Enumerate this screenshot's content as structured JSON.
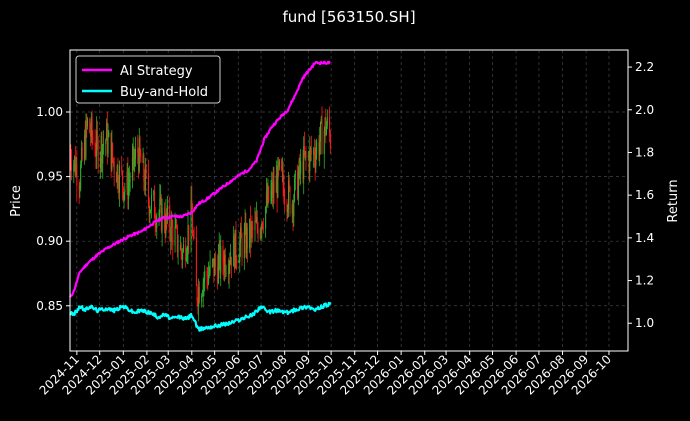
{
  "chart_data": {
    "type": "line",
    "title": "fund [563150.SH]",
    "ylabel_left": "Price",
    "ylabel_right": "Return",
    "ylim_left": [
      0.815,
      1.048
    ],
    "ylim_right": [
      0.87,
      2.28
    ],
    "x_range": [
      "2024-10-23",
      "2026-10-26"
    ],
    "grid": true,
    "legend_position": "upper-left",
    "colors": {
      "ai_strategy": "#ff00ff",
      "buy_and_hold": "#00ffff",
      "candle_up": "#2bb32b",
      "candle_down": "#ff1a1a",
      "grid": "#444444",
      "spine": "#ffffff"
    },
    "x_ticks": [
      "2024-11",
      "2024-12",
      "2025-01",
      "2025-02",
      "2025-03",
      "2025-04",
      "2025-05",
      "2025-06",
      "2025-07",
      "2025-08",
      "2025-09",
      "2025-10",
      "2025-11",
      "2025-12",
      "2026-01",
      "2026-02",
      "2026-03",
      "2026-04",
      "2026-05",
      "2026-06",
      "2026-07",
      "2026-08",
      "2026-09",
      "2026-10"
    ],
    "y_ticks_left": [
      "0.85",
      "0.90",
      "0.95",
      "1.00"
    ],
    "y_ticks_right": [
      "1.0",
      "1.2",
      "1.4",
      "1.6",
      "1.8",
      "2.0",
      "2.2"
    ],
    "series": [
      {
        "name": "AI Strategy",
        "axis": "right",
        "points": [
          [
            "2024-10-23",
            1.12
          ],
          [
            "2024-10-28",
            1.15
          ],
          [
            "2024-11-05",
            1.24
          ],
          [
            "2024-11-15",
            1.28
          ],
          [
            "2024-11-28",
            1.32
          ],
          [
            "2024-12-10",
            1.35
          ],
          [
            "2024-12-25",
            1.38
          ],
          [
            "2025-01-10",
            1.41
          ],
          [
            "2025-01-25",
            1.43
          ],
          [
            "2025-02-10",
            1.47
          ],
          [
            "2025-02-20",
            1.49
          ],
          [
            "2025-03-05",
            1.5
          ],
          [
            "2025-03-20",
            1.5
          ],
          [
            "2025-04-01",
            1.52
          ],
          [
            "2025-04-10",
            1.56
          ],
          [
            "2025-04-20",
            1.58
          ],
          [
            "2025-05-05",
            1.62
          ],
          [
            "2025-05-20",
            1.66
          ],
          [
            "2025-06-05",
            1.7
          ],
          [
            "2025-06-15",
            1.72
          ],
          [
            "2025-06-25",
            1.76
          ],
          [
            "2025-07-05",
            1.86
          ],
          [
            "2025-07-15",
            1.92
          ],
          [
            "2025-07-25",
            1.96
          ],
          [
            "2025-08-05",
            2.0
          ],
          [
            "2025-08-15",
            2.07
          ],
          [
            "2025-08-25",
            2.15
          ],
          [
            "2025-09-01",
            2.18
          ],
          [
            "2025-09-10",
            2.22
          ],
          [
            "2025-09-20",
            2.22
          ],
          [
            "2025-09-30",
            2.22
          ]
        ]
      },
      {
        "name": "Buy-and-Hold",
        "axis": "right",
        "points": [
          [
            "2024-10-23",
            1.05
          ],
          [
            "2024-10-28",
            1.04
          ],
          [
            "2024-11-05",
            1.08
          ],
          [
            "2024-11-12",
            1.06
          ],
          [
            "2024-11-18",
            1.08
          ],
          [
            "2024-11-28",
            1.06
          ],
          [
            "2024-12-10",
            1.07
          ],
          [
            "2024-12-20",
            1.06
          ],
          [
            "2025-01-01",
            1.08
          ],
          [
            "2025-01-15",
            1.05
          ],
          [
            "2025-01-25",
            1.06
          ],
          [
            "2025-02-05",
            1.05
          ],
          [
            "2025-02-15",
            1.03
          ],
          [
            "2025-02-25",
            1.04
          ],
          [
            "2025-03-05",
            1.02
          ],
          [
            "2025-03-15",
            1.03
          ],
          [
            "2025-03-25",
            1.02
          ],
          [
            "2025-04-01",
            1.04
          ],
          [
            "2025-04-06",
            1.0
          ],
          [
            "2025-04-09",
            0.97
          ],
          [
            "2025-04-20",
            0.98
          ],
          [
            "2025-05-05",
            0.99
          ],
          [
            "2025-05-20",
            1.0
          ],
          [
            "2025-06-05",
            1.02
          ],
          [
            "2025-06-20",
            1.04
          ],
          [
            "2025-07-01",
            1.08
          ],
          [
            "2025-07-10",
            1.05
          ],
          [
            "2025-07-20",
            1.06
          ],
          [
            "2025-08-05",
            1.05
          ],
          [
            "2025-08-20",
            1.07
          ],
          [
            "2025-09-01",
            1.08
          ],
          [
            "2025-09-10",
            1.06
          ],
          [
            "2025-09-20",
            1.08
          ],
          [
            "2025-09-30",
            1.09
          ]
        ]
      }
    ],
    "candlestick_trend": [
      [
        "2024-10-23",
        0.97
      ],
      [
        "2024-11-05",
        0.95
      ],
      [
        "2024-11-15",
        0.99
      ],
      [
        "2024-11-28",
        0.97
      ],
      [
        "2024-12-10",
        0.98
      ],
      [
        "2024-12-20",
        0.96
      ],
      [
        "2025-01-05",
        0.94
      ],
      [
        "2025-01-20",
        0.97
      ],
      [
        "2025-02-05",
        0.93
      ],
      [
        "2025-02-20",
        0.92
      ],
      [
        "2025-03-05",
        0.91
      ],
      [
        "2025-03-20",
        0.89
      ],
      [
        "2025-04-01",
        0.92
      ],
      [
        "2025-04-07",
        0.86
      ],
      [
        "2025-04-15",
        0.87
      ],
      [
        "2025-05-01",
        0.88
      ],
      [
        "2025-05-20",
        0.89
      ],
      [
        "2025-06-10",
        0.9
      ],
      [
        "2025-06-25",
        0.91
      ],
      [
        "2025-07-10",
        0.93
      ],
      [
        "2025-07-25",
        0.95
      ],
      [
        "2025-08-10",
        0.93
      ],
      [
        "2025-08-25",
        0.96
      ],
      [
        "2025-09-10",
        0.97
      ],
      [
        "2025-09-25",
        0.99
      ],
      [
        "2025-09-30",
        0.98
      ]
    ]
  },
  "legend": {
    "ai_label": "AI Strategy",
    "bh_label": "Buy-and-Hold"
  }
}
